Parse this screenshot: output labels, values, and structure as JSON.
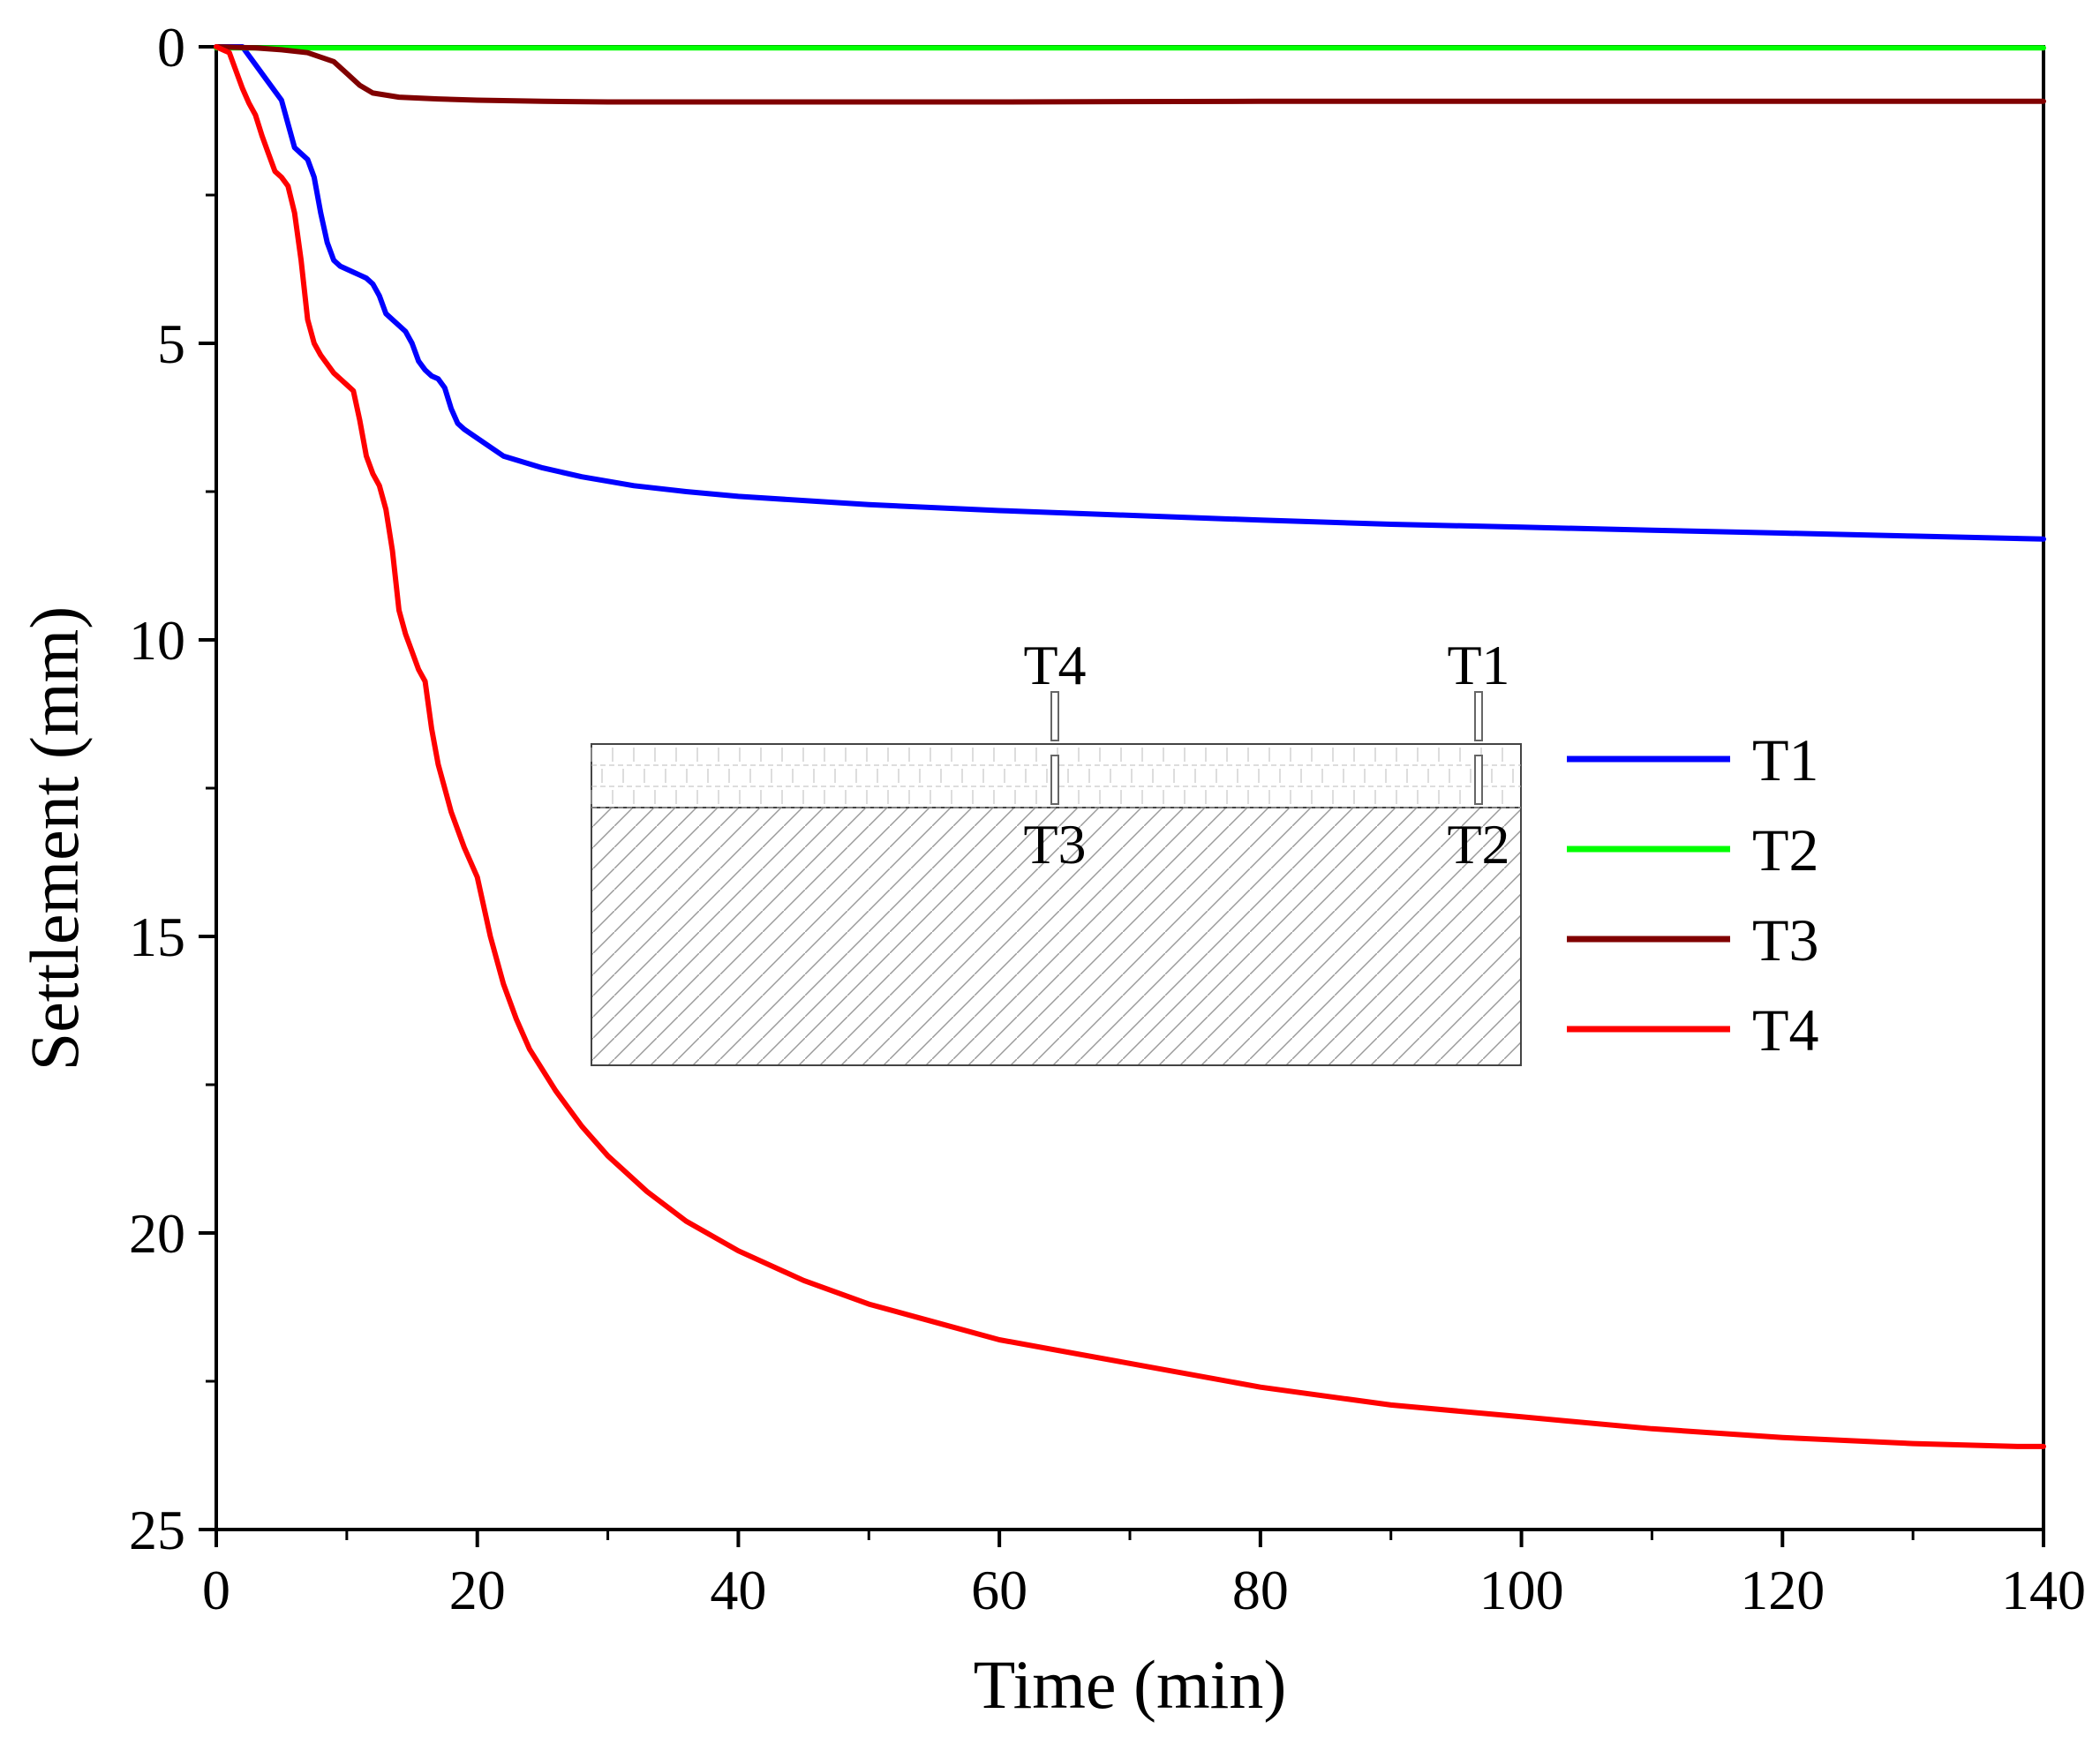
{
  "chart_data": {
    "type": "line",
    "title": "",
    "xlabel": "Time (min)",
    "ylabel": "Settlement (mm)",
    "xlim": [
      0,
      140
    ],
    "ylim": [
      0,
      25
    ],
    "y_inverted": true,
    "x_ticks": [
      0,
      20,
      40,
      60,
      80,
      100,
      120,
      140
    ],
    "y_ticks": [
      0,
      5,
      10,
      15,
      20,
      25
    ],
    "legend_position": "center-right",
    "grid": false,
    "series": [
      {
        "name": "T1",
        "color": "#0000ff",
        "x": [
          0,
          2,
          3,
          4,
          5,
          5.5,
          6,
          6.5,
          7,
          7.5,
          8,
          8.5,
          9,
          9.5,
          10,
          10.5,
          11,
          11.5,
          12,
          12.5,
          13,
          13.5,
          14,
          14.5,
          15,
          15.5,
          16,
          16.5,
          17,
          17.5,
          18,
          18.5,
          19,
          20,
          22,
          25,
          28,
          32,
          36,
          40,
          50,
          60,
          70,
          80,
          90,
          100,
          110,
          120,
          130,
          140
        ],
        "values": [
          0,
          0,
          0.3,
          0.6,
          0.9,
          1.3,
          1.7,
          1.8,
          1.9,
          2.2,
          2.8,
          3.3,
          3.6,
          3.7,
          3.75,
          3.8,
          3.85,
          3.9,
          4.0,
          4.2,
          4.5,
          4.6,
          4.7,
          4.8,
          5.0,
          5.3,
          5.45,
          5.55,
          5.6,
          5.75,
          6.1,
          6.35,
          6.45,
          6.6,
          6.9,
          7.1,
          7.25,
          7.4,
          7.5,
          7.58,
          7.72,
          7.82,
          7.9,
          7.98,
          8.05,
          8.1,
          8.15,
          8.2,
          8.25,
          8.3
        ]
      },
      {
        "name": "T2",
        "color": "#00ff00",
        "x": [
          0,
          20,
          40,
          60,
          80,
          100,
          120,
          140
        ],
        "values": [
          0.02,
          0.02,
          0.02,
          0.02,
          0.02,
          0.02,
          0.02,
          0.02
        ]
      },
      {
        "name": "T3",
        "color": "#800000",
        "x": [
          0,
          3,
          5,
          7,
          9,
          10,
          11,
          12,
          14,
          17,
          20,
          25,
          30,
          40,
          60,
          80,
          100,
          120,
          140
        ],
        "values": [
          0,
          0.02,
          0.05,
          0.1,
          0.25,
          0.45,
          0.65,
          0.78,
          0.85,
          0.88,
          0.9,
          0.92,
          0.93,
          0.93,
          0.93,
          0.92,
          0.92,
          0.92,
          0.92
        ]
      },
      {
        "name": "T4",
        "color": "#ff0000",
        "x": [
          0,
          1,
          1.5,
          2,
          2.5,
          3,
          3.5,
          4,
          4.5,
          5,
          5.5,
          6,
          6.5,
          7,
          7.5,
          8,
          8.5,
          9,
          9.5,
          10,
          10.5,
          11,
          11.5,
          12,
          12.5,
          13,
          13.5,
          14,
          14.5,
          15,
          15.5,
          16,
          16.5,
          17,
          17.5,
          18,
          19,
          20,
          21,
          22,
          23,
          24,
          26,
          28,
          30,
          33,
          36,
          40,
          45,
          50,
          55,
          60,
          70,
          80,
          90,
          100,
          110,
          120,
          130,
          138,
          140
        ],
        "values": [
          0,
          0.1,
          0.4,
          0.7,
          0.95,
          1.15,
          1.5,
          1.8,
          2.1,
          2.2,
          2.35,
          2.8,
          3.6,
          4.6,
          5.0,
          5.2,
          5.35,
          5.5,
          5.6,
          5.7,
          5.8,
          6.3,
          6.9,
          7.2,
          7.4,
          7.8,
          8.5,
          9.5,
          9.9,
          10.2,
          10.5,
          10.7,
          11.5,
          12.1,
          12.5,
          12.9,
          13.5,
          14.0,
          15.0,
          15.8,
          16.4,
          16.9,
          17.6,
          18.2,
          18.7,
          19.3,
          19.8,
          20.3,
          20.8,
          21.2,
          21.5,
          21.8,
          22.2,
          22.6,
          22.9,
          23.1,
          23.3,
          23.45,
          23.55,
          23.6,
          23.6
        ]
      }
    ],
    "inset": {
      "description_labels_top": [
        "T4",
        "T1"
      ],
      "description_labels_bottom": [
        "T3",
        "T2"
      ],
      "label_colors": {
        "T1": "#1f4e9a",
        "T2": "#4fb031",
        "T3": "#6b2d1a",
        "T4": "#e0202a"
      }
    }
  }
}
